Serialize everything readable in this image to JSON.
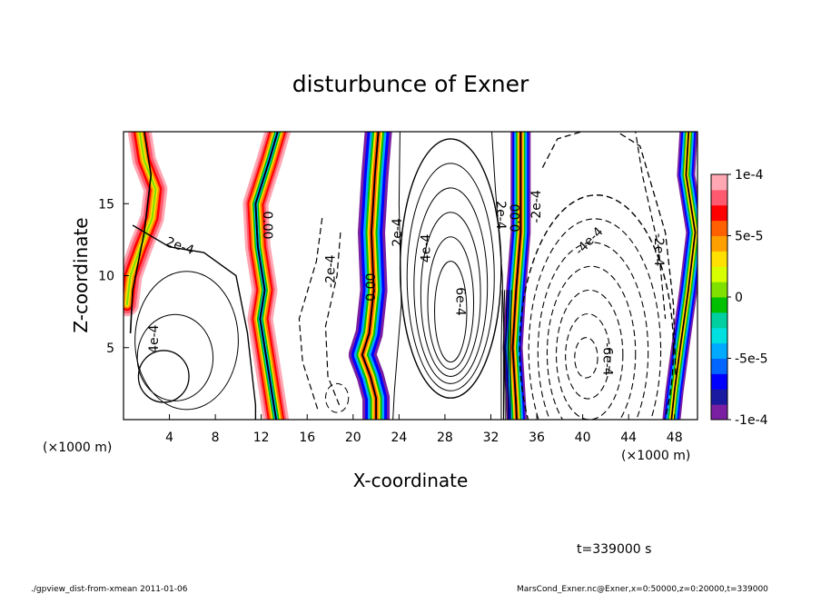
{
  "chart_data": {
    "type": "contour",
    "title": "disturbunce of Exner",
    "xlabel": "X-coordinate",
    "ylabel": "Z-coordinate",
    "x_unit_left": "(×1000 m)",
    "x_unit_right": "(×1000 m)",
    "xlim": [
      0,
      50
    ],
    "ylim": [
      0,
      20
    ],
    "x_ticks": [
      4,
      8,
      12,
      16,
      20,
      24,
      28,
      32,
      36,
      40,
      44,
      48
    ],
    "y_ticks": [
      5,
      10,
      15
    ],
    "colorbar": {
      "range": [
        -0.0001,
        0.0001
      ],
      "tick_labels": [
        {
          "value": 0.0001,
          "label": "1e-4"
        },
        {
          "value": 5e-05,
          "label": "5e-5"
        },
        {
          "value": 0,
          "label": "0"
        },
        {
          "value": -5e-05,
          "label": "-5e-5"
        },
        {
          "value": -0.0001,
          "label": "-1e-4"
        }
      ],
      "colors": [
        "#7a1fa2",
        "#1a1aa0",
        "#0000ff",
        "#0066ff",
        "#00aaff",
        "#00e0e0",
        "#00d0a0",
        "#00c000",
        "#80e000",
        "#d8ff00",
        "#ffe000",
        "#ffa000",
        "#ff6000",
        "#ff0000",
        "#ff5a6e",
        "#ffa8b4"
      ]
    },
    "contour_labels": [
      {
        "text": "2e-4",
        "x": 4.8,
        "y": 11.8
      },
      {
        "text": "4e-4",
        "x": 3.0,
        "y": 5.6
      },
      {
        "text": "0.00",
        "x": 12.2,
        "y": 13.5
      },
      {
        "text": "-2e-4",
        "x": 18.4,
        "y": 10.3
      },
      {
        "text": "0.00",
        "x": 21.9,
        "y": 9.2
      },
      {
        "text": "2e-4",
        "x": 24.2,
        "y": 13.0
      },
      {
        "text": "4e-4",
        "x": 26.7,
        "y": 11.9
      },
      {
        "text": "6e-4",
        "x": 29.0,
        "y": 8.2
      },
      {
        "text": "2e-4",
        "x": 32.5,
        "y": 14.2
      },
      {
        "text": "0.00",
        "x": 34.5,
        "y": 14.0
      },
      {
        "text": "-2e-4",
        "x": 36.3,
        "y": 14.8
      },
      {
        "text": "-4e-4",
        "x": 40.8,
        "y": 12.2
      },
      {
        "text": "-2e-4",
        "x": 46.3,
        "y": 11.8
      },
      {
        "text": "-6e-4",
        "x": 41.8,
        "y": 4.2
      }
    ],
    "time_label": "t=339000 s"
  },
  "footer": {
    "left": "./gpview_dist-from-xmean  2011-01-06",
    "right": "MarsCond_Exner.nc@Exner,x=0:50000,z=0:20000,t=339000"
  }
}
